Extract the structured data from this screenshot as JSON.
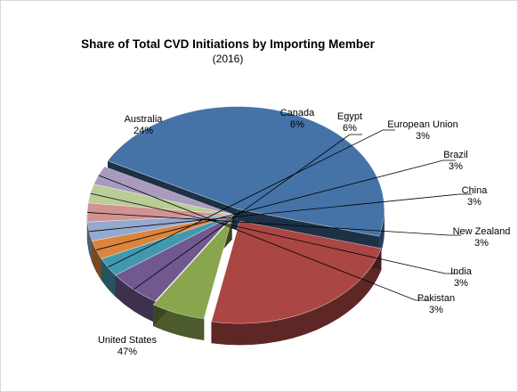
{
  "chart_data": {
    "type": "pie",
    "title": "Share of Total CVD Initiations by Importing Member",
    "subtitle": "(2016)",
    "slices": [
      {
        "name": "United States",
        "value": 47,
        "label": "47%",
        "color": "#4573a7"
      },
      {
        "name": "Australia",
        "value": 24,
        "label": "24%",
        "color": "#aa4643"
      },
      {
        "name": "Canada",
        "value": 6,
        "label": "6%",
        "color": "#89a54e"
      },
      {
        "name": "Egypt",
        "value": 6,
        "label": "6%",
        "color": "#71588f"
      },
      {
        "name": "European Union",
        "value": 3,
        "label": "3%",
        "color": "#4198af"
      },
      {
        "name": "Brazil",
        "value": 3,
        "label": "3%",
        "color": "#db843d"
      },
      {
        "name": "China",
        "value": 3,
        "label": "3%",
        "color": "#93a9cf"
      },
      {
        "name": "New Zealand",
        "value": 3,
        "label": "3%",
        "color": "#d19392"
      },
      {
        "name": "India",
        "value": 3,
        "label": "3%",
        "color": "#b9cd96"
      },
      {
        "name": "Pakistan",
        "value": 3,
        "label": "3%",
        "color": "#a99bbd"
      }
    ],
    "legend": "none",
    "style": "3d-pie"
  }
}
